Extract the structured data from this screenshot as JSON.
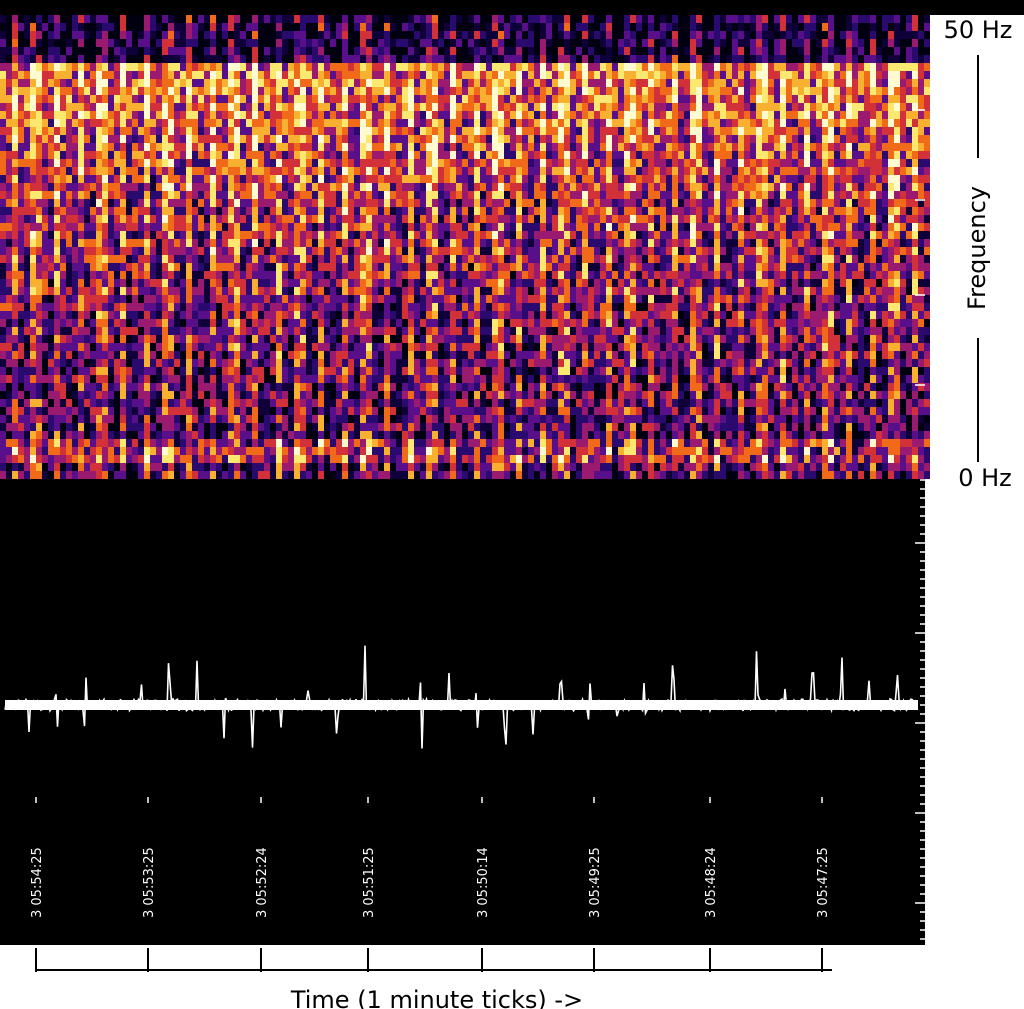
{
  "frequency_axis": {
    "top_label": "50 Hz",
    "bottom_label": "0 Hz",
    "title": "Frequency"
  },
  "time_axis": {
    "tick_labels": [
      "3 05:54:25",
      "3 05:53:25",
      "3 05:52:24",
      "3 05:51:25",
      "3 05:50:14",
      "3 05:49:25",
      "3 05:48:24",
      "3 05:47:25"
    ],
    "title": "Time (1 minute ticks) ->"
  }
}
